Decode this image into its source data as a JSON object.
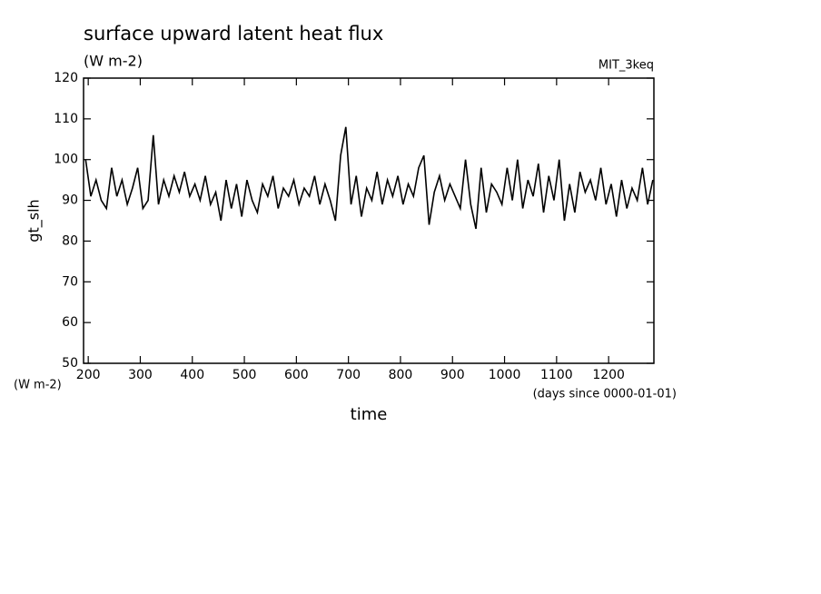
{
  "chart_data": {
    "type": "line",
    "title": "surface upward latent heat flux",
    "subtitle": "(W m-2)",
    "annotation": "MIT_3keq",
    "ylabel": "gt_slh",
    "y_unit": "(W m-2)",
    "xlabel": "time",
    "x_unit": "(days since 0000-01-01)",
    "color": "#000000",
    "xlim": [
      191,
      1287
    ],
    "ylim": [
      50,
      120
    ],
    "xticks": [
      200,
      300,
      400,
      500,
      600,
      700,
      800,
      900,
      1000,
      1100,
      1200
    ],
    "yticks": [
      50,
      60,
      70,
      80,
      90,
      100,
      110,
      120
    ],
    "x": [
      195,
      205,
      215,
      225,
      235,
      245,
      255,
      265,
      275,
      285,
      295,
      305,
      315,
      325,
      335,
      345,
      355,
      365,
      375,
      385,
      395,
      405,
      415,
      425,
      435,
      445,
      455,
      465,
      475,
      485,
      495,
      505,
      515,
      525,
      535,
      545,
      555,
      565,
      575,
      585,
      595,
      605,
      615,
      625,
      635,
      645,
      655,
      665,
      675,
      685,
      695,
      705,
      715,
      725,
      735,
      745,
      755,
      765,
      775,
      785,
      795,
      805,
      815,
      825,
      835,
      845,
      855,
      865,
      875,
      885,
      895,
      905,
      915,
      925,
      935,
      945,
      955,
      965,
      975,
      985,
      995,
      1005,
      1015,
      1025,
      1035,
      1045,
      1055,
      1065,
      1075,
      1085,
      1095,
      1105,
      1115,
      1125,
      1135,
      1145,
      1155,
      1165,
      1175,
      1185,
      1195,
      1205,
      1215,
      1225,
      1235,
      1245,
      1255,
      1265,
      1275,
      1285
    ],
    "values": [
      100,
      91,
      95,
      90,
      88,
      98,
      91,
      95,
      89,
      93,
      98,
      88,
      90,
      106,
      89,
      95,
      91,
      96,
      92,
      97,
      91,
      94,
      90,
      96,
      89,
      92,
      85,
      95,
      88,
      94,
      86,
      95,
      90,
      87,
      94,
      91,
      96,
      88,
      93,
      91,
      95,
      89,
      93,
      91,
      96,
      89,
      94,
      90,
      85,
      101,
      108,
      89,
      96,
      86,
      93,
      90,
      97,
      89,
      95,
      91,
      96,
      89,
      94,
      91,
      98,
      101,
      84,
      92,
      96,
      90,
      94,
      91,
      88,
      100,
      89,
      83,
      98,
      87,
      94,
      92,
      89,
      98,
      90,
      100,
      88,
      95,
      91,
      99,
      87,
      96,
      90,
      100,
      85,
      94,
      87,
      97,
      92,
      95,
      90,
      98,
      89,
      94,
      86,
      95,
      88,
      93,
      90,
      98,
      89,
      95
    ]
  }
}
